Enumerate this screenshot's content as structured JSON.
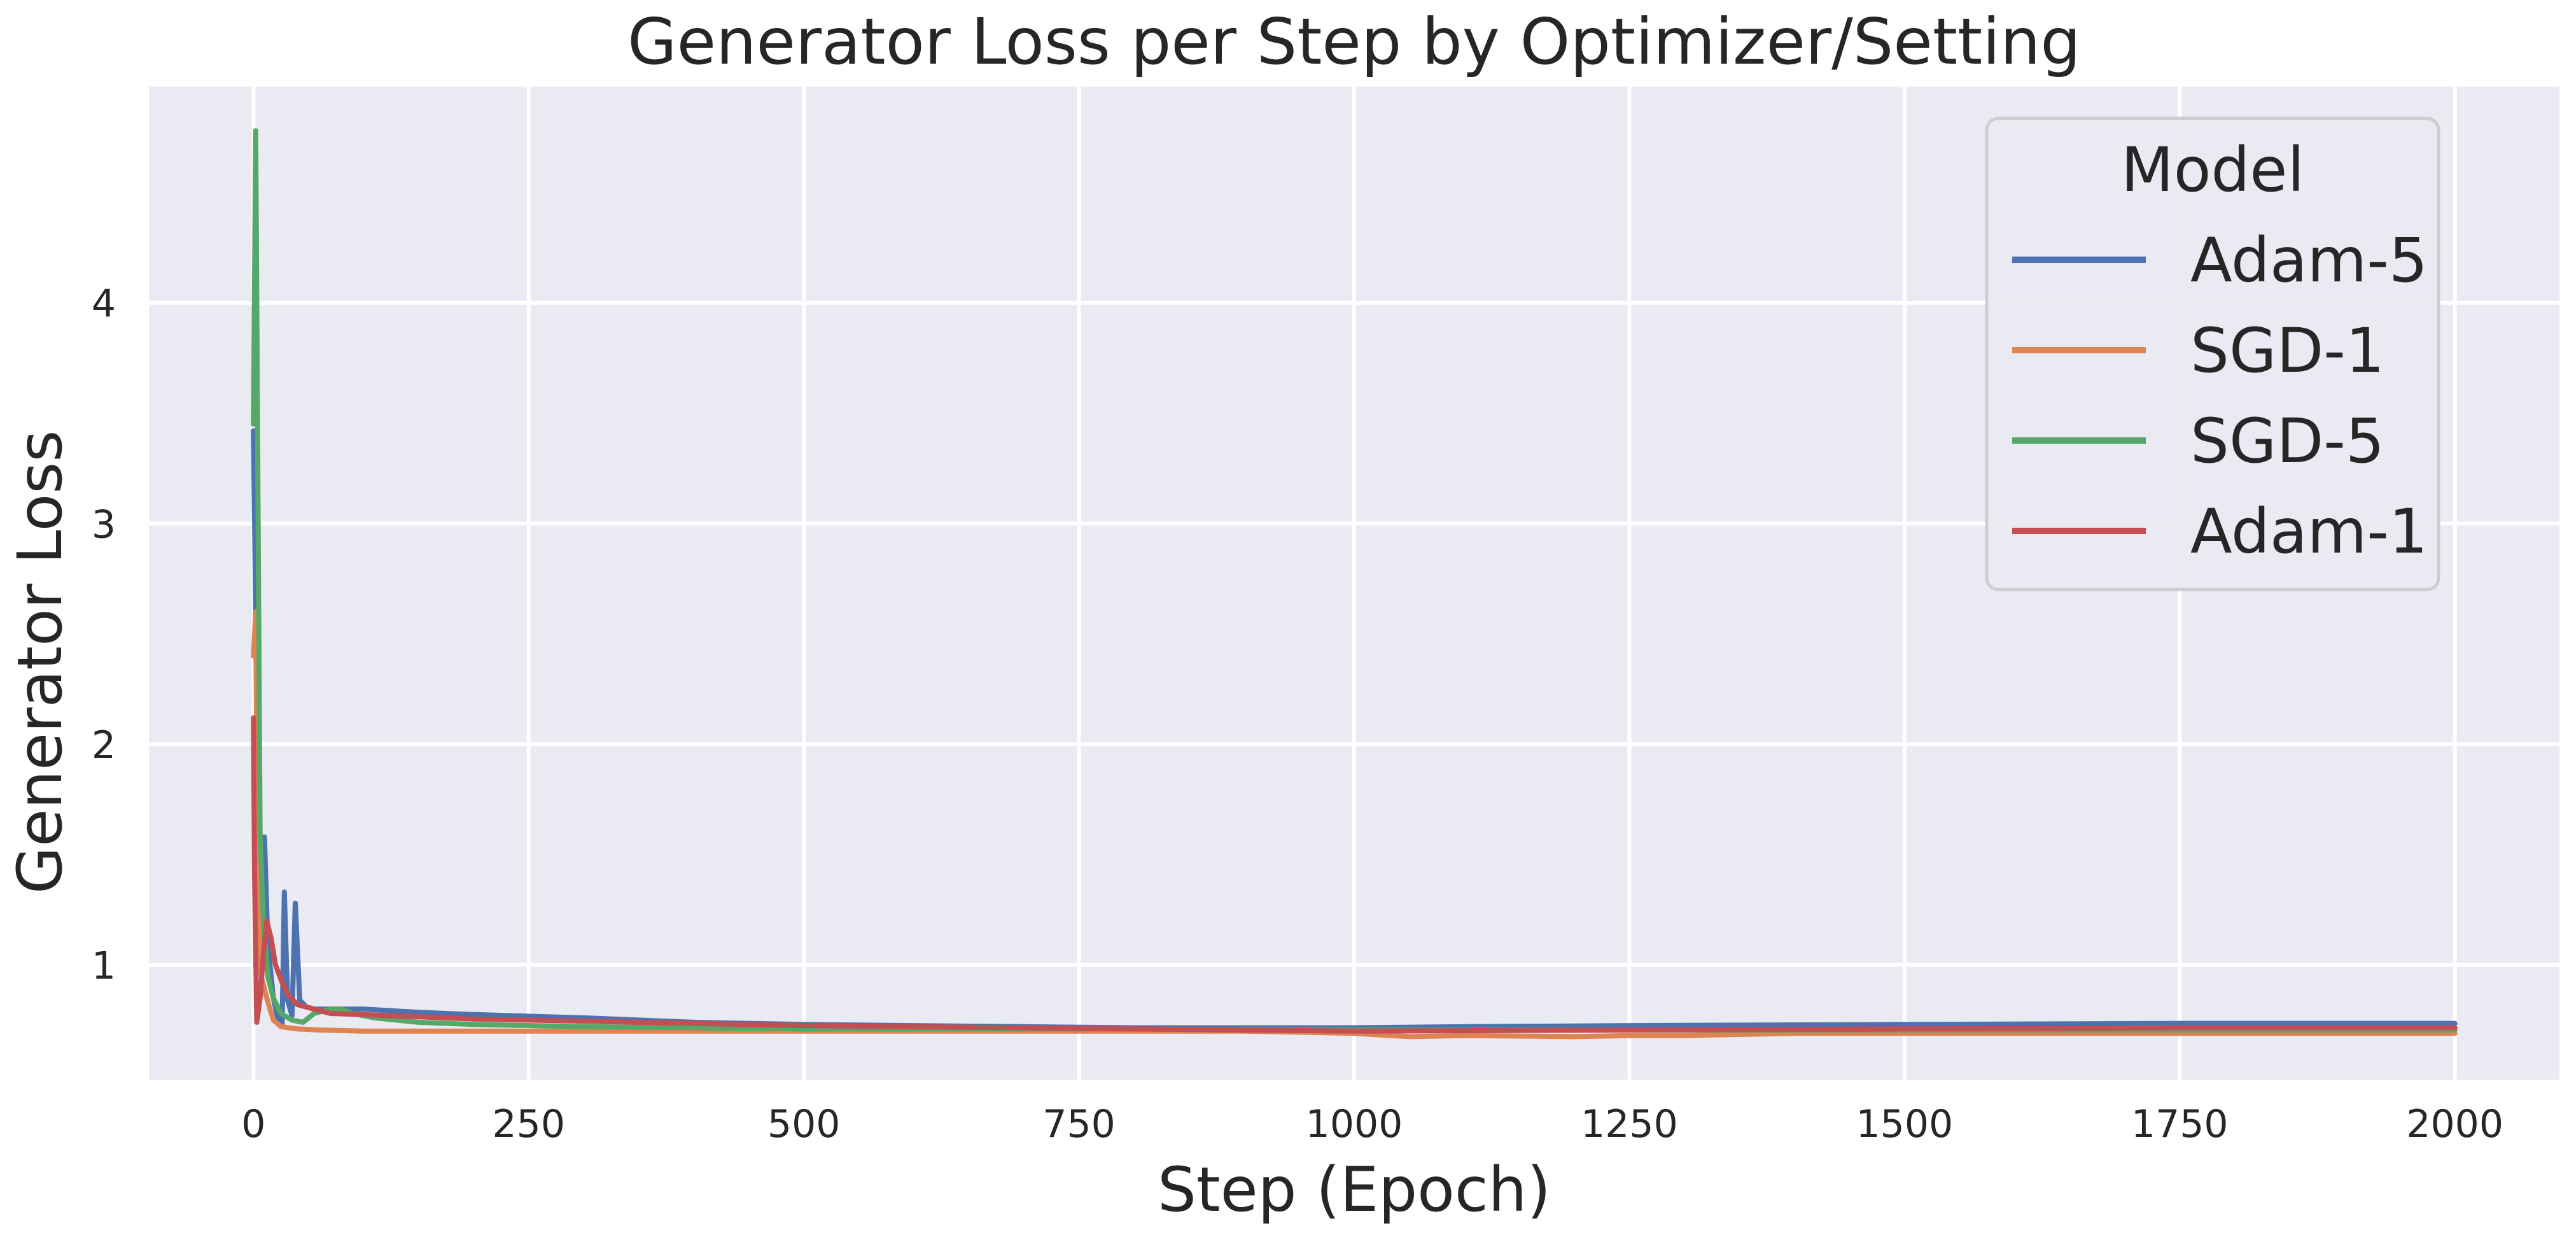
{
  "chart_data": {
    "type": "line",
    "title": "Generator Loss per Step by Optimizer/Setting",
    "xlabel": "Step (Epoch)",
    "ylabel": "Generator Loss",
    "xlim": [
      -95,
      2095
    ],
    "ylim": [
      0.48,
      4.98
    ],
    "xticks": [
      0,
      250,
      500,
      750,
      1000,
      1250,
      1500,
      1750,
      2000
    ],
    "yticks": [
      1,
      2,
      3,
      4
    ],
    "grid": true,
    "background": "#eaeaf2",
    "legend": {
      "title": "Model",
      "position": "top-right"
    },
    "series": [
      {
        "name": "Adam-5",
        "color": "#4c72b0",
        "points": [
          [
            0,
            3.42
          ],
          [
            2,
            2.6
          ],
          [
            5,
            1.2
          ],
          [
            8,
            1.1
          ],
          [
            10,
            1.58
          ],
          [
            13,
            1.1
          ],
          [
            18,
            0.85
          ],
          [
            22,
            0.76
          ],
          [
            26,
            0.72
          ],
          [
            28,
            1.33
          ],
          [
            31,
            0.84
          ],
          [
            35,
            0.77
          ],
          [
            38,
            1.28
          ],
          [
            42,
            0.84
          ],
          [
            48,
            0.81
          ],
          [
            55,
            0.8
          ],
          [
            70,
            0.8
          ],
          [
            100,
            0.8
          ],
          [
            150,
            0.785
          ],
          [
            200,
            0.775
          ],
          [
            300,
            0.76
          ],
          [
            400,
            0.74
          ],
          [
            500,
            0.73
          ],
          [
            600,
            0.725
          ],
          [
            700,
            0.72
          ],
          [
            800,
            0.715
          ],
          [
            900,
            0.715
          ],
          [
            1000,
            0.715
          ],
          [
            1100,
            0.72
          ],
          [
            1250,
            0.725
          ],
          [
            1500,
            0.73
          ],
          [
            1750,
            0.735
          ],
          [
            2000,
            0.735
          ]
        ]
      },
      {
        "name": "SGD-1",
        "color": "#dd8452",
        "points": [
          [
            0,
            2.4
          ],
          [
            2,
            2.6
          ],
          [
            4,
            1.3
          ],
          [
            7,
            0.95
          ],
          [
            12,
            0.85
          ],
          [
            18,
            0.75
          ],
          [
            25,
            0.72
          ],
          [
            40,
            0.71
          ],
          [
            60,
            0.705
          ],
          [
            100,
            0.7
          ],
          [
            200,
            0.7
          ],
          [
            300,
            0.7
          ],
          [
            400,
            0.7
          ],
          [
            500,
            0.7
          ],
          [
            600,
            0.7
          ],
          [
            700,
            0.7
          ],
          [
            800,
            0.7
          ],
          [
            900,
            0.7
          ],
          [
            1000,
            0.69
          ],
          [
            1050,
            0.675
          ],
          [
            1100,
            0.68
          ],
          [
            1200,
            0.675
          ],
          [
            1250,
            0.68
          ],
          [
            1300,
            0.68
          ],
          [
            1400,
            0.69
          ],
          [
            1500,
            0.69
          ],
          [
            1600,
            0.69
          ],
          [
            1700,
            0.69
          ],
          [
            1800,
            0.69
          ],
          [
            1900,
            0.69
          ],
          [
            2000,
            0.69
          ]
        ]
      },
      {
        "name": "SGD-5",
        "color": "#55a868",
        "points": [
          [
            0,
            3.45
          ],
          [
            2,
            4.78
          ],
          [
            4,
            3.2
          ],
          [
            6,
            1.6
          ],
          [
            9,
            1.2
          ],
          [
            13,
            0.95
          ],
          [
            18,
            0.85
          ],
          [
            25,
            0.78
          ],
          [
            35,
            0.75
          ],
          [
            45,
            0.74
          ],
          [
            55,
            0.78
          ],
          [
            70,
            0.8
          ],
          [
            80,
            0.8
          ],
          [
            90,
            0.78
          ],
          [
            110,
            0.76
          ],
          [
            150,
            0.74
          ],
          [
            200,
            0.73
          ],
          [
            300,
            0.72
          ],
          [
            400,
            0.715
          ],
          [
            500,
            0.71
          ],
          [
            750,
            0.71
          ],
          [
            1000,
            0.705
          ],
          [
            1250,
            0.705
          ],
          [
            1500,
            0.705
          ],
          [
            1750,
            0.705
          ],
          [
            2000,
            0.705
          ]
        ]
      },
      {
        "name": "Adam-1",
        "color": "#c44e52",
        "points": [
          [
            0,
            2.12
          ],
          [
            1,
            1.4
          ],
          [
            3,
            0.74
          ],
          [
            6,
            0.85
          ],
          [
            9,
            1.05
          ],
          [
            12,
            1.2
          ],
          [
            16,
            1.12
          ],
          [
            20,
            1.0
          ],
          [
            26,
            0.92
          ],
          [
            32,
            0.86
          ],
          [
            40,
            0.82
          ],
          [
            55,
            0.8
          ],
          [
            70,
            0.78
          ],
          [
            100,
            0.775
          ],
          [
            150,
            0.765
          ],
          [
            200,
            0.755
          ],
          [
            300,
            0.745
          ],
          [
            400,
            0.735
          ],
          [
            500,
            0.725
          ],
          [
            600,
            0.72
          ],
          [
            700,
            0.715
          ],
          [
            800,
            0.71
          ],
          [
            900,
            0.705
          ],
          [
            1000,
            0.7
          ],
          [
            1250,
            0.705
          ],
          [
            1500,
            0.71
          ],
          [
            1750,
            0.715
          ],
          [
            2000,
            0.715
          ]
        ]
      }
    ]
  }
}
